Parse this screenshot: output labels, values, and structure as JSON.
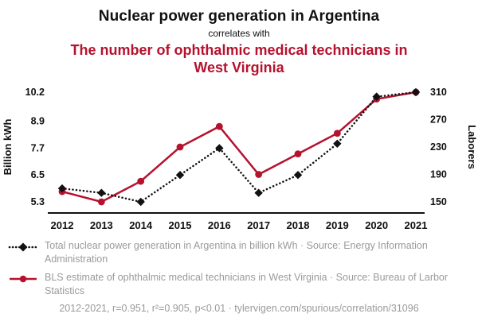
{
  "header": {
    "title": "Nuclear power generation in Argentina",
    "connector": "correlates with",
    "subtitle": "The number of ophthalmic medical technicians in West Virginia"
  },
  "colors": {
    "accent_red": "#b5122e",
    "series_black": "#111111",
    "muted_text": "#9a9a9a"
  },
  "chart_data": {
    "type": "line",
    "x": [
      "2012",
      "2013",
      "2014",
      "2015",
      "2016",
      "2017",
      "2018",
      "2019",
      "2020",
      "2021"
    ],
    "left_axis": {
      "label": "Billion kWh",
      "ticks": [
        5.3,
        6.5,
        7.7,
        8.9,
        10.2
      ],
      "min": 5.3,
      "max": 10.2
    },
    "right_axis": {
      "label": "Laborers",
      "ticks": [
        150,
        190,
        230,
        270,
        310
      ],
      "min": 150,
      "max": 310
    },
    "series": [
      {
        "name": "Total nuclear power generation in Argentina (billion kWh)",
        "axis": "left",
        "color": "#111111",
        "line": "dotted",
        "marker": "diamond",
        "values": [
          5.9,
          5.7,
          5.3,
          6.5,
          7.7,
          5.7,
          6.5,
          7.9,
          10.0,
          10.2
        ]
      },
      {
        "name": "BLS estimate of ophthalmic medical technicians in West Virginia (laborers)",
        "axis": "right",
        "color": "#b5122e",
        "line": "solid",
        "marker": "circle",
        "values": [
          165,
          150,
          180,
          230,
          260,
          190,
          220,
          250,
          300,
          310
        ]
      }
    ],
    "grid": false,
    "legend_position": "bottom"
  },
  "legend": [
    {
      "text": "Total nuclear power generation in Argentina in billion kWh · Source: Energy Information Administration"
    },
    {
      "text": "BLS estimate of ophthalmic medical technicians in West Virginia · Source: Bureau of Larbor Statistics"
    }
  ],
  "footer": "2012-2021, r=0.951, r²=0.905, p<0.01 · tylervigen.com/spurious/correlation/31096"
}
